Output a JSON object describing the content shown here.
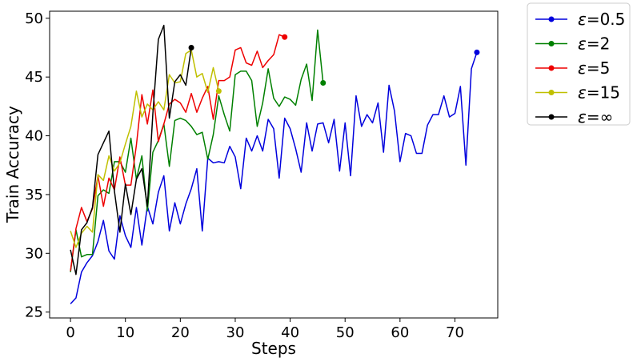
{
  "chart_data": {
    "type": "line",
    "title": "",
    "xlabel": "Steps",
    "ylabel": "Train Accuracy",
    "xlim": [
      -3.8,
      77.8
    ],
    "ylim": [
      24.5,
      50.6
    ],
    "xticks": [
      0,
      10,
      20,
      30,
      40,
      50,
      60,
      70
    ],
    "yticks": [
      25,
      30,
      35,
      40,
      45,
      50
    ],
    "grid": false,
    "legend_placement": "outside-top-right",
    "series": [
      {
        "name": "ε=0.5",
        "color": "#0000dd",
        "end_marker": true,
        "y": [
          25.7,
          26.2,
          28.4,
          29.2,
          29.8,
          31.0,
          32.8,
          30.2,
          29.5,
          33.2,
          31.5,
          30.5,
          33.9,
          30.7,
          34.0,
          32.5,
          35.2,
          36.6,
          31.9,
          34.3,
          32.5,
          34.2,
          35.5,
          37.2,
          31.9,
          38.1,
          37.7,
          37.8,
          37.7,
          39.1,
          38.2,
          35.5,
          39.8,
          38.7,
          40.0,
          38.7,
          41.4,
          40.6,
          36.4,
          41.5,
          40.6,
          38.9,
          36.9,
          41.1,
          38.7,
          41.0,
          41.1,
          39.4,
          41.4,
          37.0,
          41.1,
          36.6,
          43.4,
          40.8,
          41.8,
          41.1,
          42.8,
          38.6,
          44.3,
          42.1,
          37.8,
          40.2,
          40.0,
          38.5,
          38.5,
          40.9,
          41.8,
          41.8,
          43.4,
          41.6,
          41.9,
          44.2,
          37.5,
          45.7,
          47.1
        ]
      },
      {
        "name": "ε=2",
        "color": "#008000",
        "end_marker": true,
        "y": [
          28.4,
          32.0,
          29.7,
          29.9,
          29.9,
          34.9,
          35.4,
          35.1,
          37.8,
          37.8,
          36.9,
          39.8,
          36.3,
          38.3,
          33.6,
          38.6,
          39.6,
          41.0,
          37.4,
          41.3,
          41.5,
          41.3,
          40.8,
          40.1,
          40.3,
          38.0,
          40.1,
          43.4,
          41.8,
          40.4,
          45.2,
          45.5,
          45.5,
          44.7,
          40.8,
          42.8,
          45.7,
          43.2,
          42.5,
          43.3,
          43.1,
          42.6,
          44.8,
          46.1,
          43.0,
          49.0,
          44.5
        ]
      },
      {
        "name": "ε=5",
        "color": "#ee0000",
        "end_marker": true,
        "y": [
          28.5,
          32.1,
          33.9,
          32.7,
          33.8,
          36.6,
          34.0,
          36.4,
          35.4,
          38.2,
          35.8,
          35.8,
          39.2,
          43.5,
          41.0,
          43.9,
          39.5,
          41.0,
          42.7,
          43.1,
          42.8,
          42.0,
          43.6,
          42.0,
          43.2,
          44.2,
          41.4,
          44.7,
          44.7,
          45.0,
          47.3,
          47.5,
          46.2,
          46.0,
          47.2,
          45.8,
          46.4,
          46.9,
          48.6,
          48.4
        ]
      },
      {
        "name": "ε=15",
        "color": "#c0c000",
        "end_marker": true,
        "y": [
          31.9,
          30.5,
          31.7,
          32.3,
          31.8,
          36.7,
          36.2,
          38.3,
          37.0,
          37.7,
          39.3,
          40.8,
          43.8,
          41.6,
          42.7,
          42.2,
          42.9,
          42.2,
          45.2,
          44.5,
          44.6,
          47.0,
          47.3,
          45.0,
          45.3,
          43.7,
          45.8,
          43.8
        ]
      },
      {
        "name": "ε=∞",
        "color": "#000000",
        "end_marker": true,
        "y": [
          30.3,
          28.2,
          32.0,
          32.6,
          33.9,
          38.4,
          39.4,
          40.4,
          35.3,
          31.8,
          35.9,
          33.3,
          36.3,
          37.2,
          34.0,
          41.9,
          48.2,
          49.4,
          41.5,
          44.6,
          45.2,
          44.3,
          47.5
        ]
      }
    ]
  }
}
